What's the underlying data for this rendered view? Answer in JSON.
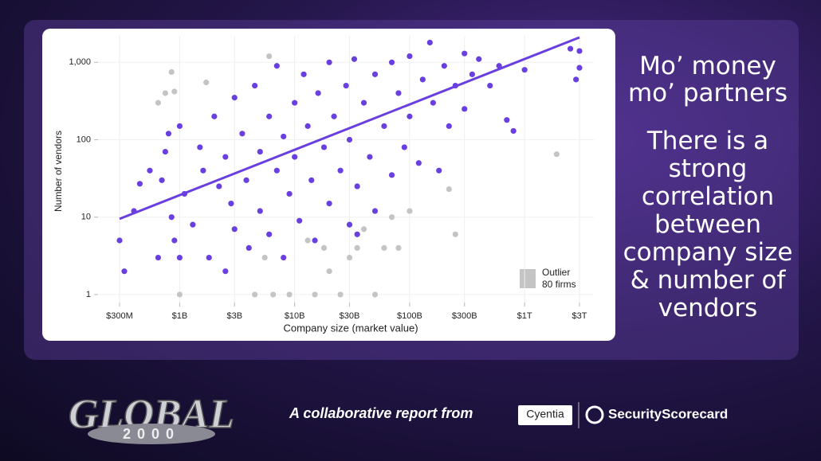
{
  "chart_data": {
    "type": "scatter",
    "x_label": "Company size (market value)",
    "y_label": "Number of vendors",
    "log_x": true,
    "log_y": true,
    "grid": true,
    "xlim": [
      180000000,
      4000000000000
    ],
    "ylim": [
      0.7,
      2200
    ],
    "xticks": [
      {
        "value": 300000000,
        "label": "$300M"
      },
      {
        "value": 1000000000,
        "label": "$1B"
      },
      {
        "value": 3000000000,
        "label": "$3B"
      },
      {
        "value": 10000000000,
        "label": "$10B"
      },
      {
        "value": 30000000000,
        "label": "$30B"
      },
      {
        "value": 100000000000,
        "label": "$100B"
      },
      {
        "value": 300000000000,
        "label": "$300B"
      },
      {
        "value": 1000000000000,
        "label": "$1T"
      },
      {
        "value": 3000000000000,
        "label": "$3T"
      }
    ],
    "yticks": [
      1,
      10,
      100,
      {
        "value": 1000,
        "label": "1,000"
      }
    ],
    "legend_position": "lower right",
    "outlier_count_label": "80 firms",
    "series": [
      {
        "color": "#6a3fe0",
        "x": [
          300000000.0,
          330000000.0,
          400000000.0,
          450000000.0,
          550000000.0,
          650000000.0,
          700000000.0,
          750000000.0,
          800000000.0,
          850000000.0,
          900000000.0,
          1000000000.0,
          1000000000.0,
          1100000000.0,
          1300000000.0,
          1500000000.0,
          1600000000.0,
          1800000000.0,
          2000000000.0,
          2200000000.0,
          2500000000.0,
          2500000000.0,
          2800000000.0,
          3000000000.0,
          3000000000.0,
          3500000000.0,
          3800000000.0,
          4000000000.0,
          4500000000.0,
          5000000000.0,
          5000000000.0,
          6000000000.0,
          6000000000.0,
          7000000000.0,
          7000000000.0,
          8000000000.0,
          8000000000.0,
          9000000000.0,
          10000000000.0,
          10000000000.0,
          11000000000.0,
          12000000000.0,
          13000000000.0,
          14000000000.0,
          15000000000.0,
          16000000000.0,
          18000000000.0,
          20000000000.0,
          20000000000.0,
          22000000000.0,
          25000000000.0,
          28000000000.0,
          30000000000.0,
          30000000000.0,
          33000000000.0,
          35000000000.0,
          40000000000.0,
          45000000000.0,
          50000000000.0,
          50000000000.0,
          60000000000.0,
          70000000000.0,
          70000000000.0,
          80000000000.0,
          90000000000.0,
          100000000000.0,
          100000000000.0,
          120000000000.0,
          130000000000.0,
          150000000000.0,
          160000000000.0,
          180000000000.0,
          200000000000.0,
          220000000000.0,
          250000000000.0,
          300000000000.0,
          300000000000.0,
          350000000000.0,
          400000000000.0,
          500000000000.0,
          600000000000.0,
          700000000000.0,
          800000000000.0,
          1000000000000.0,
          2500000000000.0,
          2800000000000.0,
          3000000000000.0,
          3000000000000.0,
          35000000000.0
        ],
        "values": [
          5,
          2,
          12,
          27,
          40,
          3,
          30,
          70,
          120,
          10,
          5,
          150,
          3,
          20,
          8,
          80,
          40,
          3,
          200,
          25,
          2,
          60,
          15,
          350,
          7,
          120,
          30,
          4,
          500,
          70,
          12,
          200,
          6,
          40,
          900,
          3,
          110,
          20,
          300,
          60,
          9,
          700,
          150,
          30,
          5,
          400,
          80,
          15,
          1000,
          200,
          40,
          500,
          100,
          8,
          1100,
          25,
          300,
          60,
          700,
          12,
          150,
          1000,
          35,
          400,
          80,
          1200,
          200,
          50,
          600,
          1800,
          300,
          40,
          900,
          150,
          500,
          1300,
          250,
          700,
          1100,
          500,
          900,
          180,
          130,
          800,
          1500,
          600,
          850,
          1400,
          6
        ]
      },
      {
        "name": "Outlier",
        "color": "#c4c4c4",
        "x": [
          650000000.0,
          750000000.0,
          850000000.0,
          900000000.0,
          1000000000.0,
          1700000000.0,
          4500000000.0,
          5500000000.0,
          6000000000.0,
          6500000000.0,
          8000000000.0,
          9000000000.0,
          13000000000.0,
          15000000000.0,
          18000000000.0,
          20000000000.0,
          25000000000.0,
          30000000000.0,
          40000000000.0,
          50000000000.0,
          60000000000.0,
          70000000000.0,
          80000000000.0,
          100000000000.0,
          220000000000.0,
          250000000000.0,
          1900000000000.0,
          35000000000.0
        ],
        "values": [
          300,
          400,
          750,
          420,
          1,
          550,
          1,
          3,
          1200,
          1,
          3,
          1,
          5,
          1,
          4,
          2,
          1,
          3,
          7,
          1,
          4,
          10,
          4,
          12,
          23,
          6,
          65,
          4
        ]
      }
    ],
    "trend": {
      "color": "#6a3fe0",
      "x": [
        300000000.0,
        3000000000000.0
      ],
      "values": [
        9.5,
        2100
      ]
    }
  },
  "slide": {
    "headline": "Mo’ money mo’ partners",
    "body": "There is a strong correlation between company size & number of vendors",
    "logo_word": "GLOBAL",
    "logo_number": "2000",
    "footer": "A collaborative report from",
    "partner_1": "Cyentia",
    "partner_2": "SecurityScorecard"
  }
}
